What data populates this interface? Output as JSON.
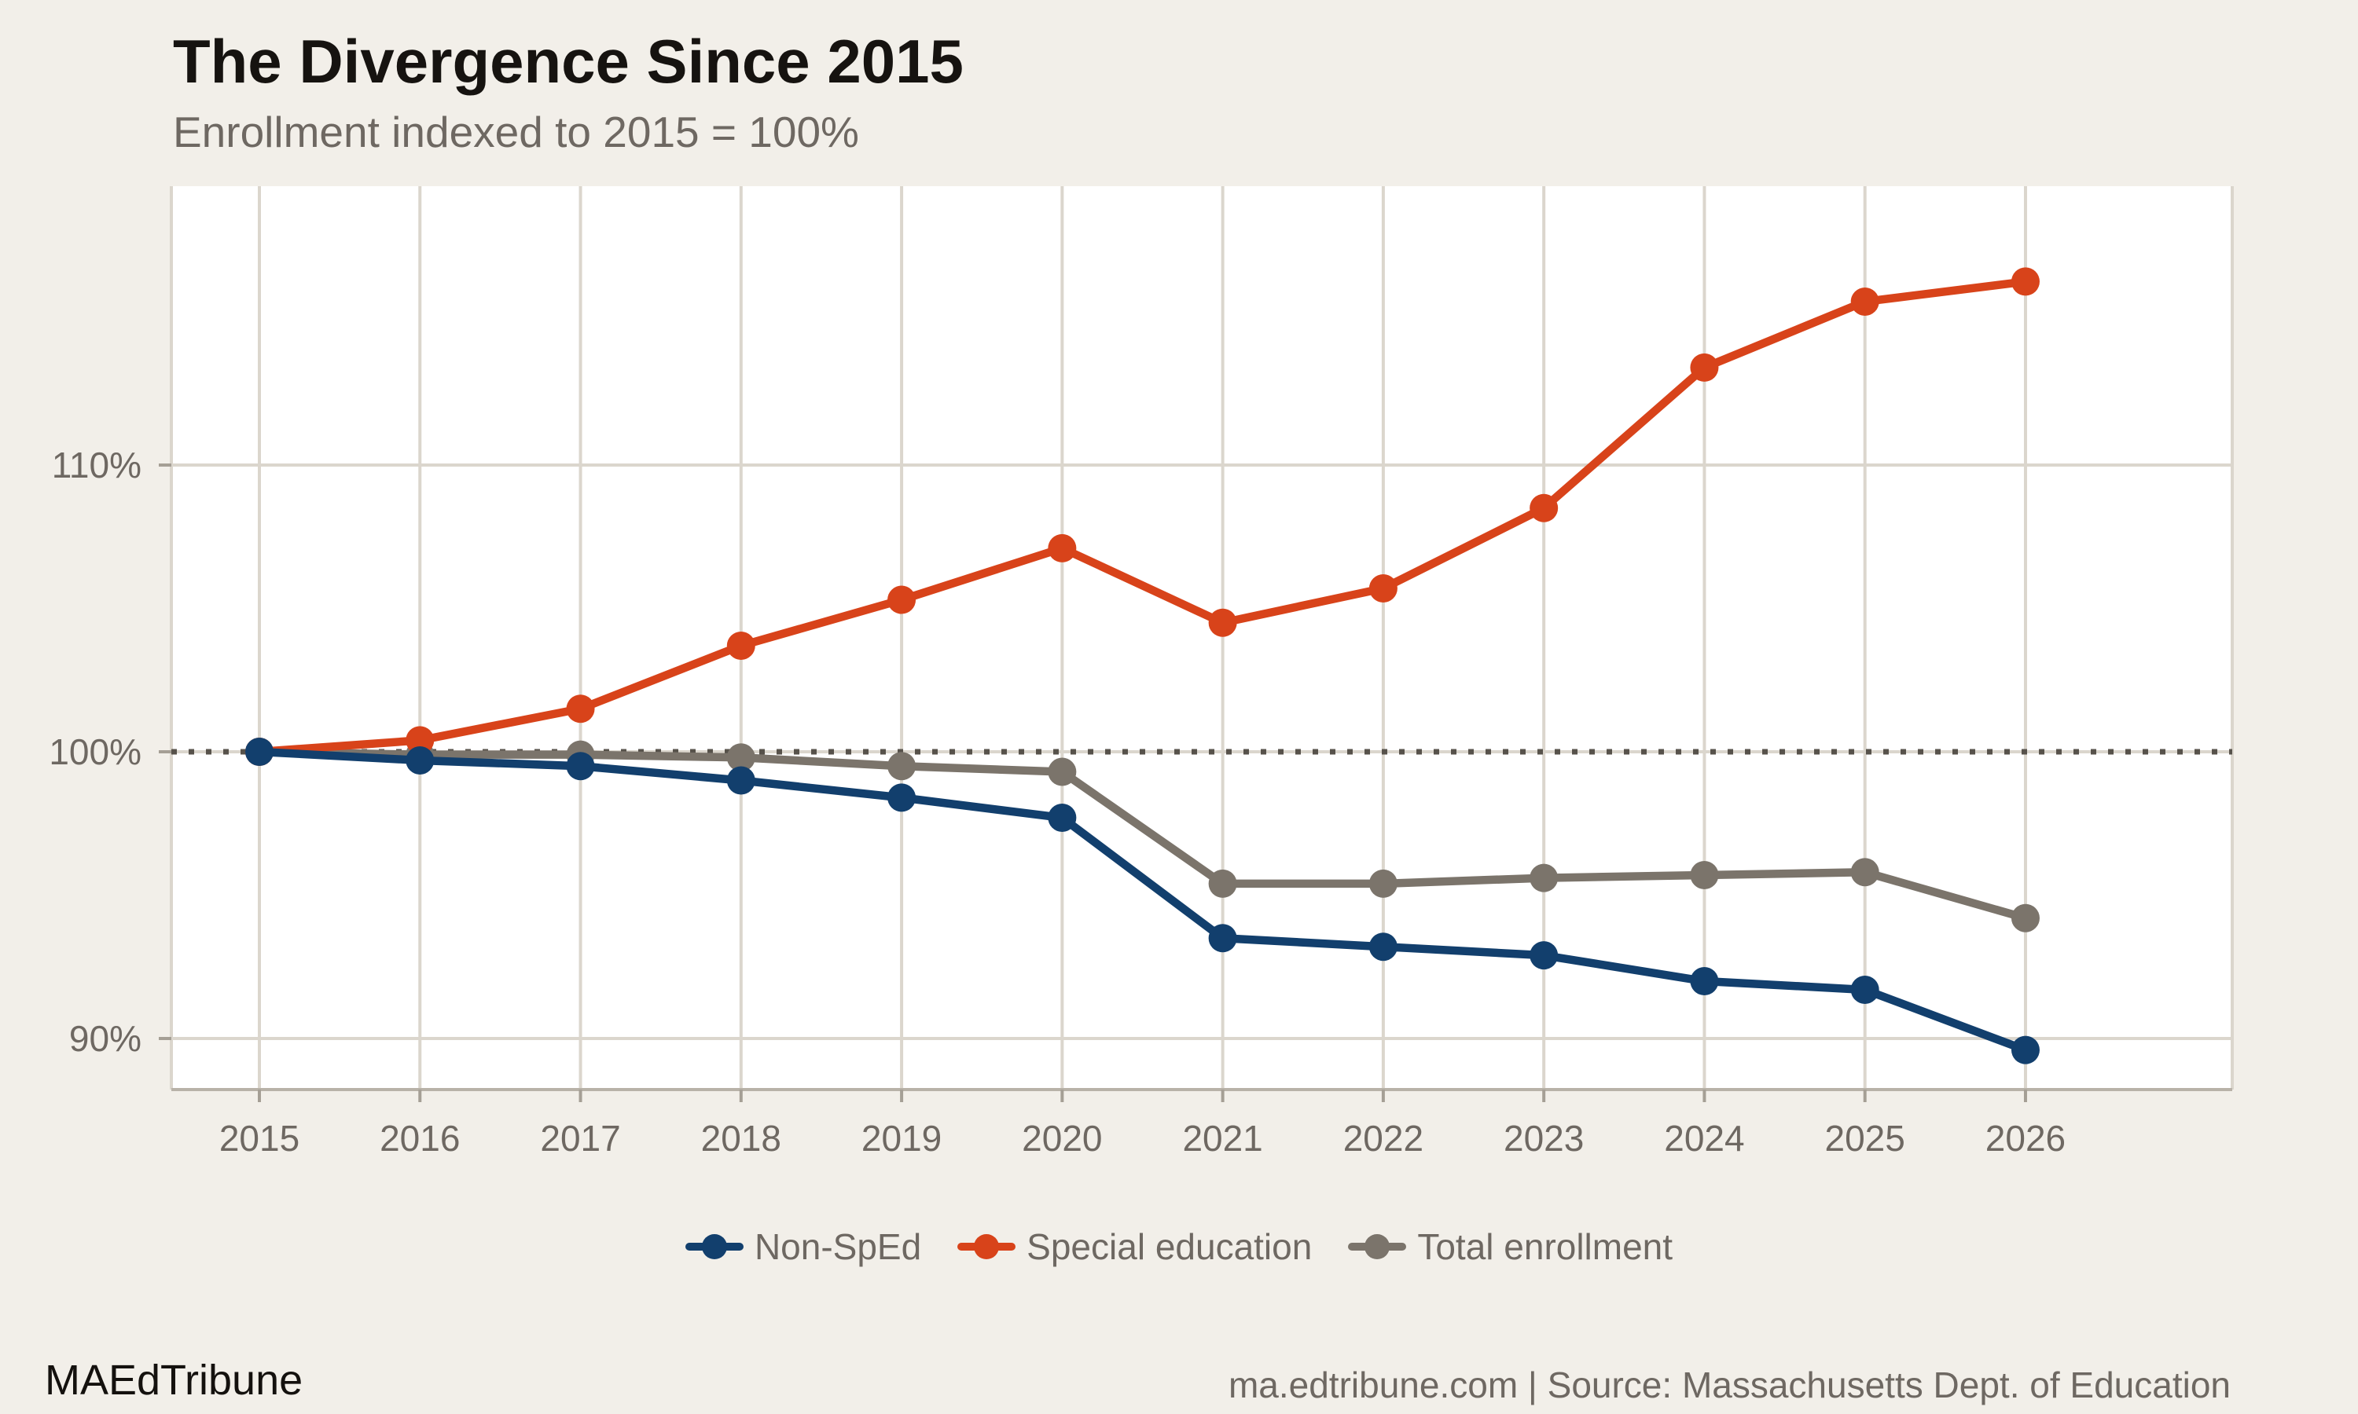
{
  "background": "#f2efe9",
  "chart_data": {
    "type": "line",
    "title": "The Divergence Since 2015",
    "subtitle": "Enrollment indexed to 2015 = 100%",
    "x": [
      "2015",
      "2016",
      "2017",
      "2018",
      "2019",
      "2020",
      "2021",
      "2022",
      "2023",
      "2024",
      "2025",
      "2026"
    ],
    "series": [
      {
        "name": "Non-SpEd",
        "color": "#123f6d",
        "values": [
          100,
          99.7,
          99.5,
          99.0,
          98.4,
          97.7,
          93.5,
          93.2,
          92.9,
          92.0,
          91.7,
          89.6
        ]
      },
      {
        "name": "Special education",
        "color": "#d8431a",
        "values": [
          100,
          100.4,
          101.5,
          103.7,
          105.3,
          107.1,
          104.5,
          105.7,
          108.5,
          113.4,
          115.7,
          116.4
        ]
      },
      {
        "name": "Total enrollment",
        "color": "#7b746b",
        "values": [
          100,
          99.9,
          99.9,
          99.8,
          99.5,
          99.3,
          95.4,
          95.4,
          95.6,
          95.7,
          95.8,
          94.2
        ]
      }
    ],
    "yticks": [
      {
        "value": 110,
        "label": "110%"
      },
      {
        "value": 100,
        "label": "100%"
      },
      {
        "value": 90,
        "label": "90%"
      }
    ],
    "ylim": [
      88.2,
      119.8
    ],
    "xlabel": "",
    "ylabel": "",
    "grid": true,
    "reference_line": {
      "value": 100,
      "style": "dotted"
    },
    "legend_position": "bottom"
  },
  "footer": {
    "brand": "MAEdTribune",
    "source": "ma.edtribune.com | Source: Massachusetts Dept. of Education"
  }
}
